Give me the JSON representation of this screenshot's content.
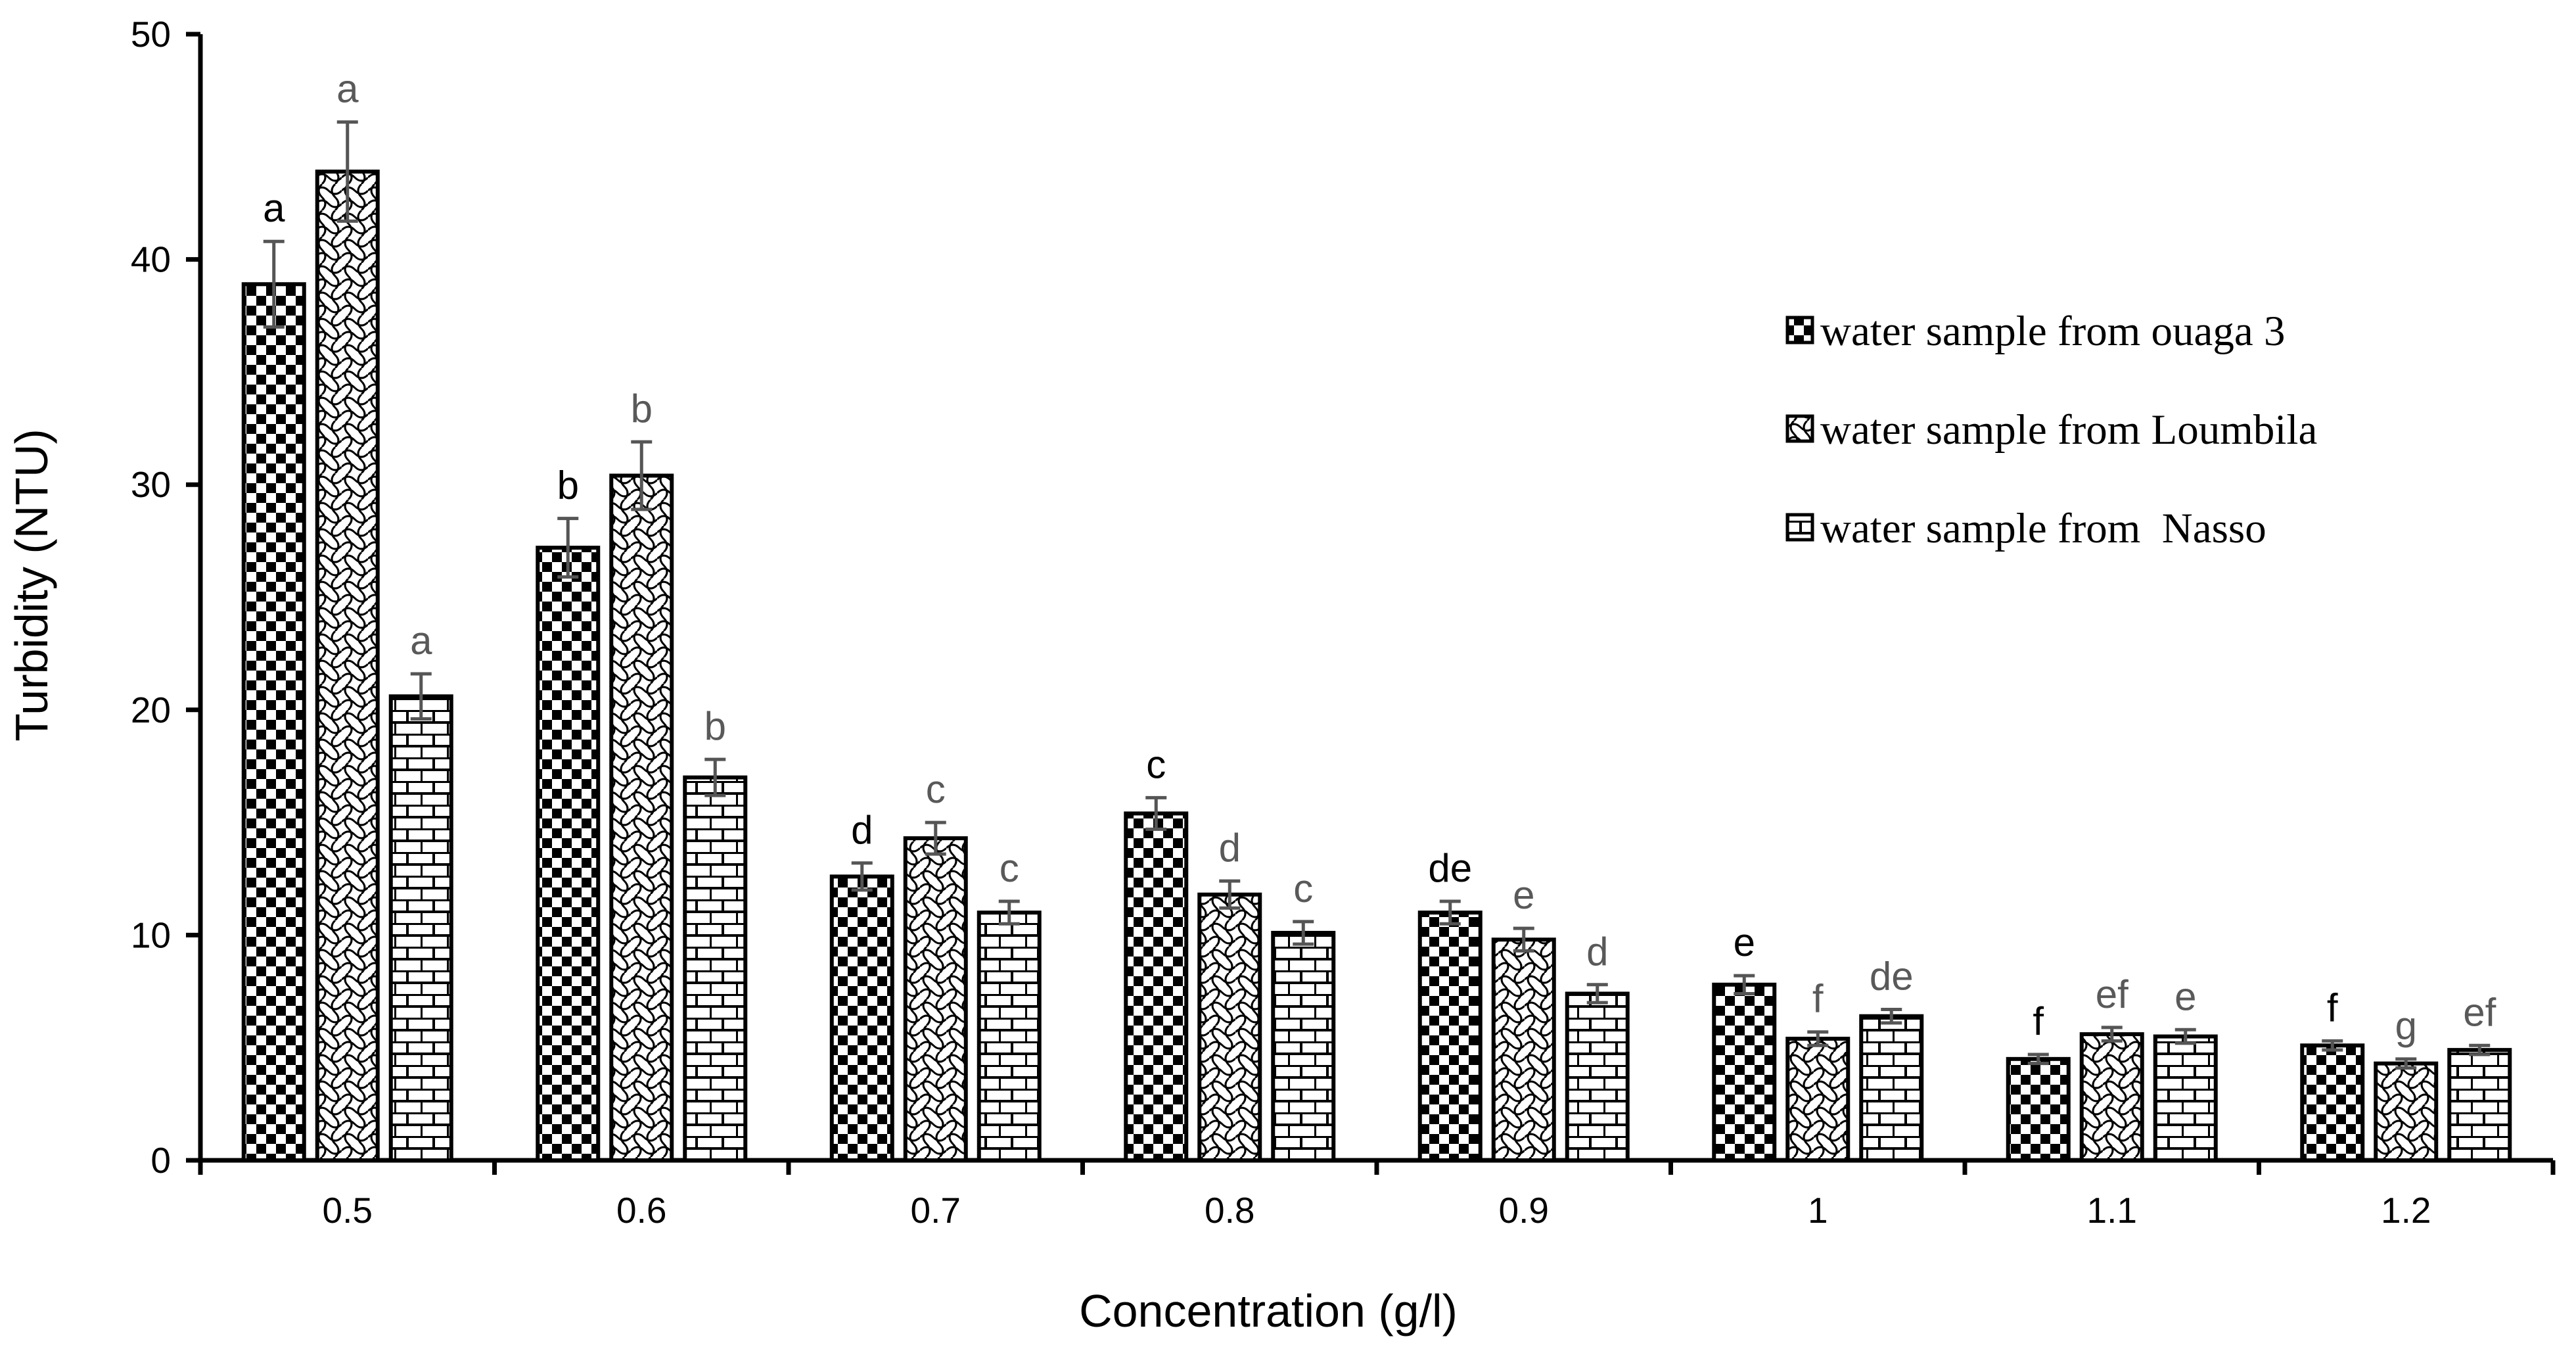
{
  "chart_data": {
    "type": "bar",
    "title": "",
    "xlabel": "Concentration (g/l)",
    "ylabel": "Turbidity (NTU)",
    "ylim": [
      0,
      50
    ],
    "yticks": [
      "0",
      "10",
      "20",
      "30",
      "40",
      "50"
    ],
    "grid": false,
    "legend_position": "top-right",
    "categories": [
      "0.5",
      "0.6",
      "0.7",
      "0.8",
      "0.9",
      "1",
      "1.1",
      "1.2"
    ],
    "series": [
      {
        "name": "water sample from ouaga 3",
        "pattern": "checker",
        "values": [
          38.9,
          27.2,
          12.6,
          15.4,
          11.0,
          7.8,
          4.5,
          5.1
        ],
        "errors": [
          1.9,
          1.3,
          0.6,
          0.7,
          0.5,
          0.4,
          0.2,
          0.2
        ],
        "labels": [
          "a",
          "b",
          "d",
          "c",
          "de",
          "e",
          "f",
          "f"
        ],
        "label_color": "#000000"
      },
      {
        "name": "water sample from Loumbila",
        "pattern": "wave",
        "values": [
          43.9,
          30.4,
          14.3,
          11.8,
          9.8,
          5.4,
          5.6,
          4.3
        ],
        "errors": [
          2.2,
          1.5,
          0.7,
          0.6,
          0.5,
          0.3,
          0.3,
          0.2
        ],
        "labels": [
          "a",
          "b",
          "c",
          "d",
          "e",
          "f",
          "ef",
          "g"
        ],
        "label_color": "#595959"
      },
      {
        "name": "water sample from  Nasso",
        "pattern": "brick",
        "values": [
          20.6,
          17.0,
          11.0,
          10.1,
          7.4,
          6.4,
          5.5,
          4.9
        ],
        "errors": [
          1.0,
          0.8,
          0.5,
          0.5,
          0.4,
          0.3,
          0.3,
          0.2
        ],
        "labels": [
          "a",
          "b",
          "c",
          "c",
          "d",
          "de",
          "e",
          "ef"
        ],
        "label_color": "#595959"
      }
    ]
  }
}
